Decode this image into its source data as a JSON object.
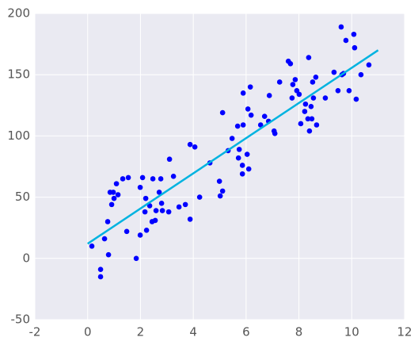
{
  "chart_data": {
    "type": "scatter",
    "xlim": [
      -2,
      12
    ],
    "xticks": [
      -2,
      0,
      2,
      4,
      6,
      8,
      10,
      12
    ],
    "ylim": [
      -50,
      200
    ],
    "yticks": [
      -50,
      0,
      50,
      100,
      150,
      200
    ],
    "grid": true,
    "background": "#eaeaf2",
    "grid_color": "#ffffff",
    "series": [
      {
        "type": "scatter",
        "color": "#0000ff",
        "x": [
          0.16,
          0.49,
          0.49,
          0.64,
          0.76,
          0.79,
          0.85,
          0.91,
          0.97,
          1.0,
          1.09,
          1.15,
          1.33,
          1.48,
          1.54,
          1.84,
          1.99,
          1.99,
          2.08,
          2.17,
          2.2,
          2.23,
          2.35,
          2.44,
          2.47,
          2.56,
          2.59,
          2.71,
          2.77,
          2.8,
          2.83,
          3.07,
          3.1,
          3.25,
          3.46,
          3.7,
          3.88,
          3.88,
          4.06,
          4.24,
          4.63,
          4.99,
          5.02,
          5.11,
          5.11,
          5.32,
          5.47,
          5.68,
          5.74,
          5.71,
          5.86,
          5.86,
          5.89,
          5.89,
          6.04,
          6.1,
          6.07,
          6.16,
          6.19,
          6.55,
          6.7,
          6.85,
          6.88,
          7.06,
          7.09,
          7.27,
          7.6,
          7.68,
          7.74,
          7.77,
          7.86,
          7.92,
          8.01,
          8.07,
          8.22,
          8.25,
          8.34,
          8.37,
          8.4,
          8.46,
          8.49,
          8.52,
          8.55,
          8.64,
          8.67,
          9.0,
          9.33,
          9.48,
          9.6,
          9.63,
          9.69,
          9.78,
          9.9,
          10.08,
          10.11,
          10.17,
          10.35,
          10.65
        ],
        "values": [
          10,
          -9,
          -15,
          16,
          30,
          3,
          54,
          44,
          54,
          49,
          61,
          52,
          65,
          22,
          66,
          0,
          19,
          58,
          66,
          38,
          49,
          23,
          43,
          30,
          65,
          31,
          39,
          54,
          65,
          45,
          39,
          38,
          81,
          67,
          42,
          44,
          93,
          32,
          91,
          50,
          78,
          63,
          51,
          55,
          119,
          88,
          98,
          108,
          89,
          82,
          76,
          69,
          109,
          135,
          85,
          73,
          122,
          140,
          117,
          109,
          116,
          112,
          133,
          104,
          102,
          144,
          161,
          159,
          131,
          142,
          146,
          137,
          134,
          110,
          120,
          126,
          114,
          164,
          104,
          124,
          114,
          144,
          131,
          148,
          109,
          131,
          152,
          137,
          189,
          150,
          151,
          178,
          137,
          183,
          172,
          130,
          150,
          158
        ]
      },
      {
        "type": "line",
        "color": "#00b3e0",
        "x": [
          0,
          11
        ],
        "values": [
          12,
          170
        ]
      }
    ]
  }
}
